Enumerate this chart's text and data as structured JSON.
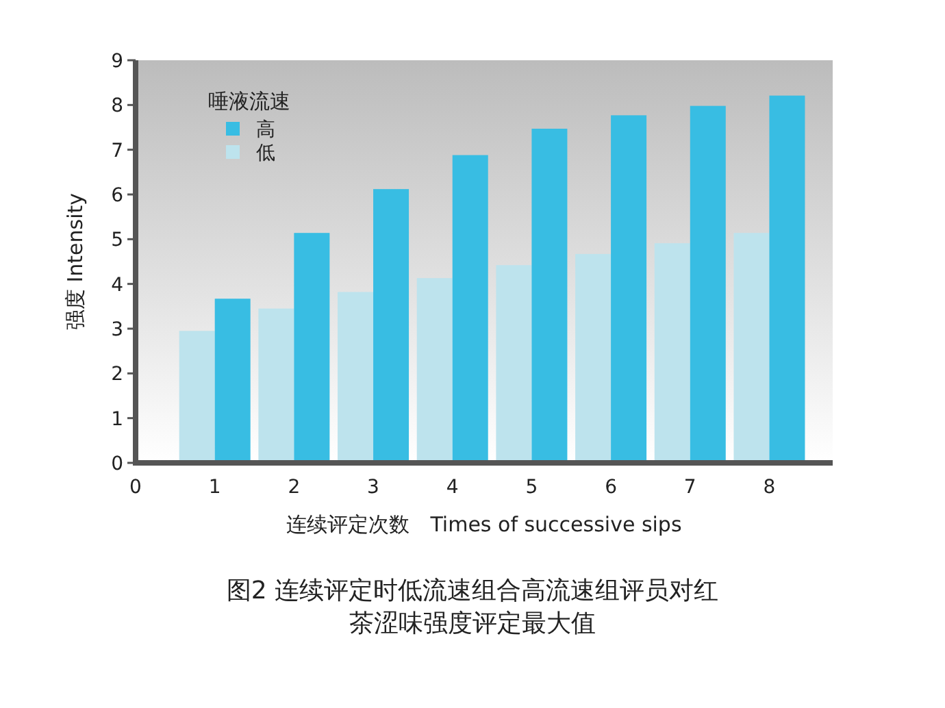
{
  "chart_data": {
    "type": "bar",
    "title": "图2 连续评定时低流速组合高流速组评员对红茶涩味强度评定最大值",
    "xlabel": "连续评定次数　Times of successive sips",
    "ylabel": "强度 Intensity",
    "legend_title": "唾液流速",
    "x": [
      1,
      2,
      3,
      4,
      5,
      6,
      7,
      8
    ],
    "series": [
      {
        "name": "低",
        "color": "#bde3ed",
        "values": [
          2.95,
          3.45,
          3.82,
          4.13,
          4.42,
          4.67,
          4.91,
          5.14
        ]
      },
      {
        "name": "高",
        "color": "#38bde3",
        "values": [
          3.67,
          5.14,
          6.12,
          6.88,
          7.47,
          7.77,
          7.98,
          8.21
        ]
      }
    ],
    "xlim": [
      0,
      8.8
    ],
    "xticks": [
      0,
      1,
      2,
      3,
      4,
      5,
      6,
      7,
      8
    ],
    "ylim": [
      0,
      9
    ],
    "yticks": [
      0,
      1,
      2,
      3,
      4,
      5,
      6,
      7,
      8,
      9
    ],
    "legend": "top left",
    "grid": false
  }
}
